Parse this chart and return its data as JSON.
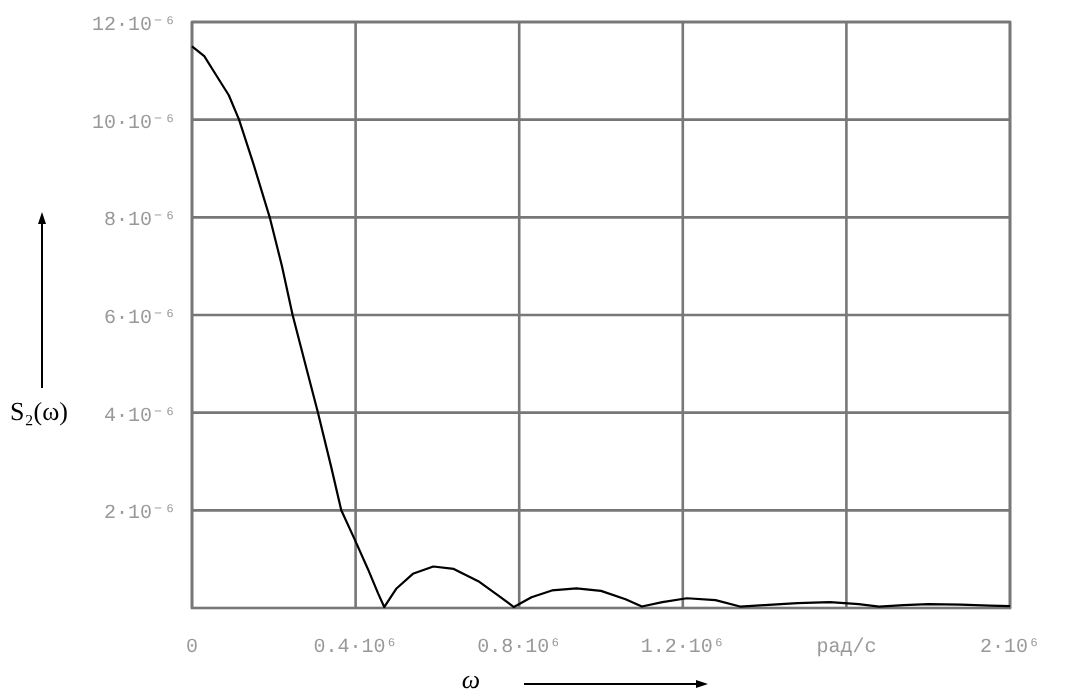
{
  "chart_data": {
    "type": "line",
    "xlabel": "ω",
    "ylabel": "S₂(ω)",
    "xlim": [
      0,
      2000000
    ],
    "ylim": [
      0,
      1.2e-05
    ],
    "xticks": [
      0,
      {
        "value": 400000,
        "label": "0.4·10⁶"
      },
      {
        "value": 800000,
        "label": "0.8·10⁶"
      },
      {
        "value": 1200000,
        "label": "1.2·10⁶"
      },
      {
        "value": 1600000,
        "label": "рад/с"
      },
      {
        "value": 2000000,
        "label": "2·10⁶"
      }
    ],
    "yticks": [
      {
        "value": 2e-06,
        "label": "2·10⁻⁶"
      },
      {
        "value": 4e-06,
        "label": "4·10⁻⁶"
      },
      {
        "value": 6e-06,
        "label": "6·10⁻⁶"
      },
      {
        "value": 8e-06,
        "label": "8·10⁻⁶"
      },
      {
        "value": 1e-05,
        "label": "10·10⁻⁶"
      },
      {
        "value": 1.2e-05,
        "label": "12·10⁻⁶"
      }
    ],
    "grid": true,
    "series": [
      {
        "color": "#000000",
        "x": [
          0,
          30000,
          60000,
          90000,
          115000,
          150000,
          190000,
          220000,
          246000,
          280000,
          308000,
          340000,
          365000,
          398000,
          430000,
          455000,
          470000,
          500000,
          540000,
          590000,
          640000,
          700000,
          750000,
          787000,
          830000,
          880000,
          940000,
          1000000,
          1060000,
          1100000,
          1150000,
          1210000,
          1280000,
          1340000,
          1400000,
          1480000,
          1560000,
          1630000,
          1680000,
          1740000,
          1800000,
          1880000,
          1950000,
          2000000
        ],
        "values": [
          1.15e-05,
          1.13e-05,
          1.09e-05,
          1.05e-05,
          1e-05,
          9.1e-06,
          8e-06,
          7e-06,
          6e-06,
          4.9e-06,
          4e-06,
          2.9e-06,
          2e-06,
          1.4e-06,
          8e-07,
          3e-07,
          2e-08,
          4e-07,
          7e-07,
          8.5e-07,
          8e-07,
          5.5e-07,
          2.5e-07,
          2e-08,
          2.2e-07,
          3.6e-07,
          4e-07,
          3.5e-07,
          1.8e-07,
          3e-08,
          1.2e-07,
          2e-07,
          1.6e-07,
          3e-08,
          6e-08,
          1e-07,
          1.2e-07,
          8e-08,
          3e-08,
          6e-08,
          8e-08,
          7e-08,
          5e-08,
          4e-08
        ]
      }
    ]
  }
}
